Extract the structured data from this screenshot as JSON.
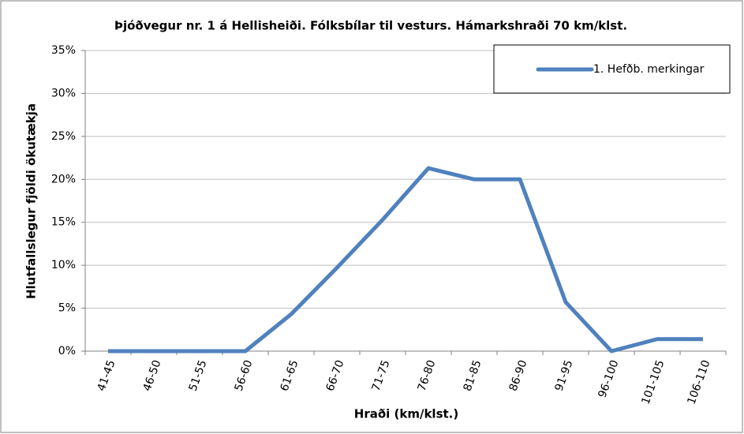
{
  "chart_data": {
    "type": "line",
    "title": "Þjóðvegur nr. 1 á Hellisheiði. Fólksbílar til vesturs. Hámarkshraði 70 km/klst.",
    "x_label": "Hraði (km/klst.)",
    "y_label": "Hlutfallslegur fjöldi ökutækja",
    "categories": [
      "41-45",
      "46-50",
      "51-55",
      "56-60",
      "61-65",
      "66-70",
      "71-75",
      "76-80",
      "81-85",
      "86-90",
      "91-95",
      "96-100",
      "101-105",
      "106-110"
    ],
    "series": [
      {
        "name": "1. Hefðb. merkingar",
        "color": "#4f81bd",
        "values": [
          0,
          0,
          0,
          0,
          4.3,
          9.7,
          15.3,
          21.3,
          20,
          20,
          5.7,
          0,
          1.4,
          1.4
        ]
      }
    ],
    "ylim": [
      0,
      35
    ],
    "yticks": [
      {
        "value": 0,
        "label": "0%"
      },
      {
        "value": 5,
        "label": "5%"
      },
      {
        "value": 10,
        "label": "10%"
      },
      {
        "value": 15,
        "label": "15%"
      },
      {
        "value": 20,
        "label": "20%"
      },
      {
        "value": 25,
        "label": "25%"
      },
      {
        "value": 30,
        "label": "30%"
      },
      {
        "value": 35,
        "label": "35%"
      }
    ],
    "grid": true,
    "legend": "top-right"
  }
}
